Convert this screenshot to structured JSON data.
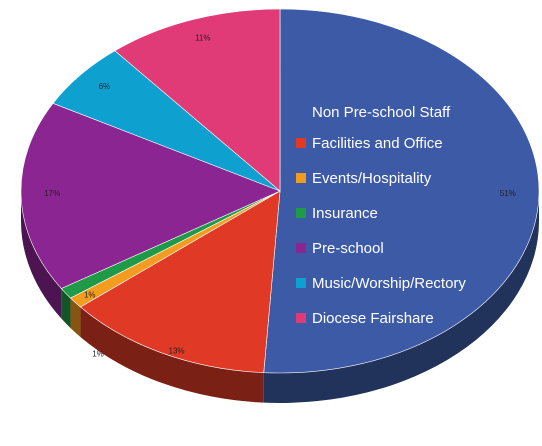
{
  "chart_data": {
    "type": "pie",
    "slices": [
      {
        "label": "Non Pre-school Staff",
        "value": 51,
        "value_label": "51%",
        "color": "#3c5aa6"
      },
      {
        "label": "Facilities and Office",
        "value": 13,
        "value_label": "13%",
        "color": "#e03a26"
      },
      {
        "label": "Events/Hospitality",
        "value": 1,
        "value_label": "1%",
        "color": "#f39c1f"
      },
      {
        "label": "Insurance",
        "value": 1,
        "value_label": "1%",
        "color": "#1f9a48"
      },
      {
        "label": "Pre-school",
        "value": 17,
        "value_label": "17%",
        "color": "#8a2592"
      },
      {
        "label": "Music/Worship/Rectory",
        "value": 6,
        "value_label": "6%",
        "color": "#0ea0cf"
      },
      {
        "label": "Diocese Fairshare",
        "value": 11,
        "value_label": "11%",
        "color": "#e03b77"
      }
    ],
    "legend": {
      "title": "Non Pre-school Staff",
      "placement": "inside-right",
      "entries": [
        "Facilities and Office",
        "Events/Hospitality",
        "Insurance",
        "Pre-school",
        "Music/Worship/Rectory",
        "Diocese Fairshare"
      ]
    }
  }
}
